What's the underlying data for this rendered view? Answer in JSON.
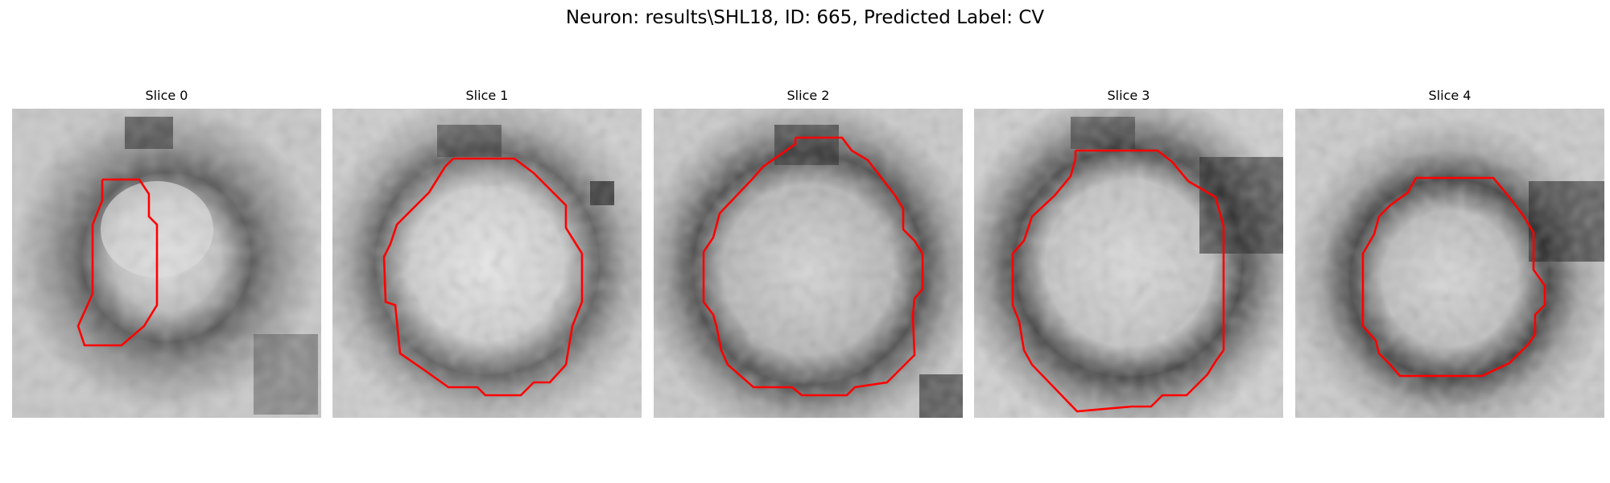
{
  "figure": {
    "title": "Neuron: results\\SHL18, ID: 665, Predicted Label: CV"
  },
  "colors": {
    "background": "#ffffff",
    "contour": "#ff0000"
  },
  "slices": [
    {
      "title": "Slice 0"
    },
    {
      "title": "Slice 1"
    },
    {
      "title": "Slice 2"
    },
    {
      "title": "Slice 3"
    },
    {
      "title": "Slice 4"
    }
  ]
}
